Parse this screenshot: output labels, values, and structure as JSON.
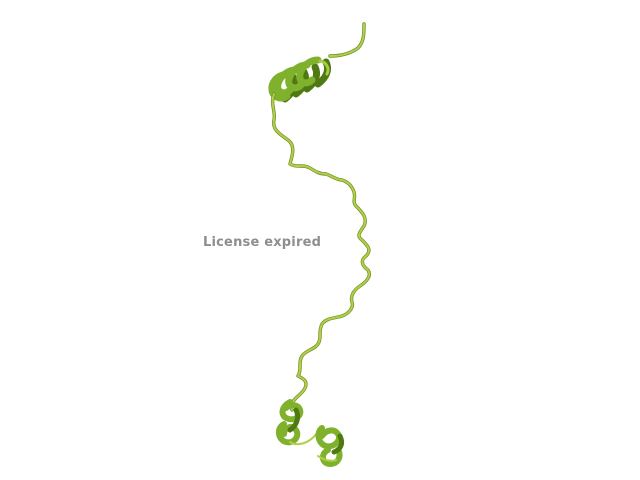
{
  "viewer": {
    "watermark_text": "License expired",
    "watermark_color": "#8e8e8e",
    "background_color": "#ffffff"
  },
  "molecule": {
    "representation": "cartoon",
    "colors": {
      "coil": "#b0cf4a",
      "coil_edge": "#6f8f22",
      "helix_front": "#7fb12c",
      "helix_back": "#4f7a12",
      "helix_highlight": "#a6cc45"
    },
    "elements": [
      "n-terminal-helix",
      "disordered-coil-region",
      "c-terminal-helix-turns"
    ]
  }
}
